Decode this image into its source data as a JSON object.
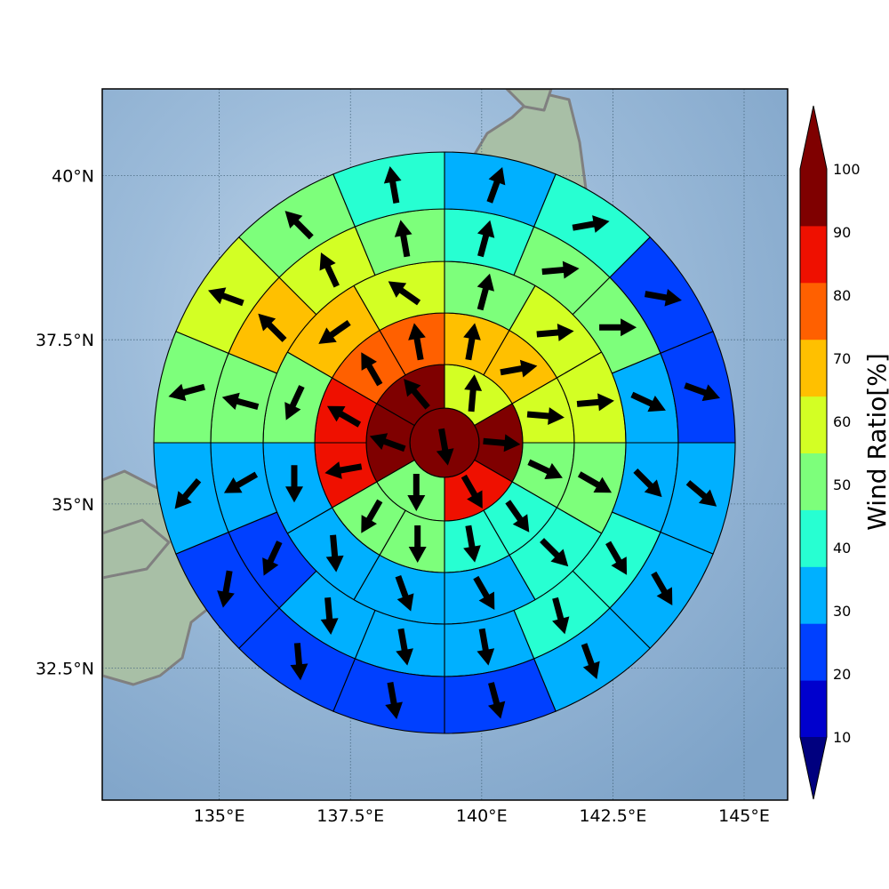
{
  "chart_data": {
    "type": "heatmap",
    "title": "",
    "map": {
      "lon_range": [
        132.77,
        145.83
      ],
      "lat_range": [
        30.49,
        41.32
      ],
      "lon_ticks": [
        135,
        137.5,
        140,
        142.5,
        145
      ],
      "lon_tick_labels": [
        "135°E",
        "137.5°E",
        "140°E",
        "142.5°E",
        "145°E"
      ],
      "lat_ticks": [
        32.5,
        35,
        37.5,
        40
      ],
      "lat_tick_labels": [
        "32.5°N",
        "35°N",
        "37.5°N",
        "40°N"
      ],
      "grid": true,
      "basemap": "shaded relief with grey coastlines (Japan, Honshu)"
    },
    "polar_grid": {
      "ring_count": 6,
      "sectors_per_ring": [
        1,
        6,
        12,
        12,
        16,
        16
      ],
      "first_sector_start_deg_clockwise_from_north": 0,
      "ring_values": [
        [
          100
        ],
        [
          65,
          100,
          95,
          55,
          100,
          100
        ],
        [
          70,
          70,
          65,
          55,
          45,
          45,
          55,
          55,
          95,
          95,
          85,
          85
        ],
        [
          55,
          65,
          65,
          55,
          45,
          35,
          35,
          35,
          35,
          55,
          75,
          65
        ],
        [
          45,
          55,
          55,
          35,
          35,
          45,
          45,
          35,
          35,
          35,
          25,
          35,
          55,
          75,
          65,
          55
        ],
        [
          35,
          45,
          25,
          25,
          35,
          35,
          35,
          25,
          25,
          25,
          25,
          35,
          55,
          65,
          55,
          45
        ]
      ],
      "ring_wind_direction_deg": [
        [
          170
        ],
        [
          5,
          95,
          150,
          180,
          290,
          320
        ],
        [
          10,
          80,
          95,
          115,
          145,
          170,
          180,
          210,
          260,
          300,
          330,
          350
        ],
        [
          15,
          85,
          85,
          120,
          135,
          150,
          160,
          175,
          180,
          205,
          235,
          305
        ],
        [
          15,
          85,
          90,
          115,
          135,
          150,
          165,
          170,
          170,
          175,
          205,
          240,
          285,
          315,
          335,
          350
        ],
        [
          20,
          80,
          100,
          110,
          130,
          150,
          160,
          165,
          170,
          175,
          190,
          220,
          255,
          290,
          315,
          350
        ]
      ]
    },
    "colorbar": {
      "label": "Wind Ratio[%]",
      "ticks": [
        10,
        20,
        30,
        40,
        50,
        60,
        70,
        80,
        90,
        100
      ],
      "tick_labels": [
        "10",
        "20",
        "30",
        "40",
        "50",
        "60",
        "70",
        "80",
        "90",
        "100"
      ],
      "range": [
        10,
        100
      ],
      "extend": "both",
      "colors": [
        "#0000cd",
        "#0040ff",
        "#00b0ff",
        "#27ffd2",
        "#7dff7b",
        "#d3ff24",
        "#ffc000",
        "#ff6000",
        "#ef1000",
        "#7f0000"
      ],
      "under_color": "#00007f",
      "over_color": "#7f0000"
    }
  }
}
